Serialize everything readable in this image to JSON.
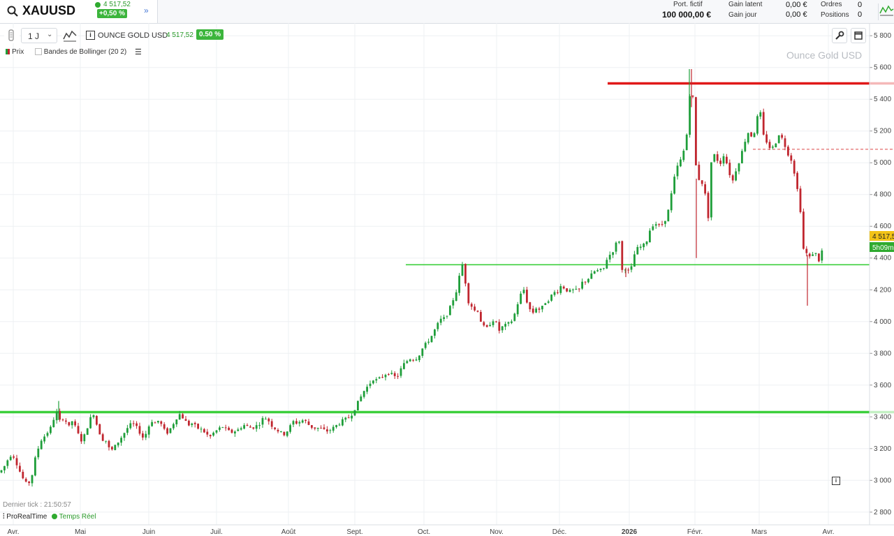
{
  "header": {
    "symbol": "XAUUSD",
    "price": "4 517,52",
    "change": "+0,50 %",
    "portfolio_label": "Port. fictif",
    "portfolio_value": "100 000,00 €",
    "gain_latent_label": "Gain latent",
    "gain_latent_value": "0,00 €",
    "gain_jour_label": "Gain jour",
    "gain_jour_value": "0,00 €",
    "orders_label": "Ordres",
    "orders_value": "0",
    "positions_label": "Positions",
    "positions_value": "0"
  },
  "toolbar": {
    "timeframe": "1 J",
    "instrument": "OUNCE GOLD USD",
    "price": "4 517,52",
    "change": "0.50 %"
  },
  "legend": {
    "prix": "Prix",
    "bollinger": "Bandes de Bollinger (20 2)"
  },
  "footer": {
    "last_tick": "Dernier tick : 21:50:57",
    "brand": "ProRealTime",
    "realtime": "Temps Réel"
  },
  "chart_data": {
    "type": "candlestick",
    "title": "Ounce Gold USD",
    "ylim": [
      2720,
      5880
    ],
    "y_ticks": [
      2800,
      3000,
      3200,
      3400,
      3600,
      3800,
      4000,
      4200,
      4400,
      4600,
      4800,
      5000,
      5200,
      5400,
      5600,
      5800
    ],
    "y_tick_labels": [
      "2 800",
      "3 000",
      "3 200",
      "3 400",
      "3 600",
      "3 800",
      "4 000",
      "4 200",
      "4 400",
      "4 600",
      "4 800",
      "5 000",
      "5 200",
      "5 400",
      "5 600",
      "5 800"
    ],
    "x_labels": [
      "Avr.",
      "Mai",
      "Juin",
      "Juil.",
      "Août",
      "Sept.",
      "Oct.",
      "Nov.",
      "Déc.",
      "2026",
      "Févr.",
      "Mars",
      "Avr."
    ],
    "last_price_tag": "4 517,5",
    "countdown_tag": "5h09m",
    "colors": {
      "up": "#1f9e3a",
      "down": "#c0262f",
      "support": "#3ccf3c",
      "resistance": "#e01818"
    },
    "horizontal_levels": [
      {
        "value": 3430,
        "color": "#3ccf3c",
        "style": "solid-thick",
        "from": "Avr."
      },
      {
        "value": 4358,
        "color": "#3ccf3c",
        "style": "solid",
        "from": "Sept."
      },
      {
        "value": 5500,
        "color": "#e01818",
        "style": "solid-thick",
        "from": "Déc."
      },
      {
        "value": 5085,
        "color": "#e36a6a",
        "style": "dashed",
        "from": "Mars"
      }
    ],
    "price_path": [
      [
        0,
        3050
      ],
      [
        8,
        3100
      ],
      [
        14,
        3160
      ],
      [
        20,
        3150
      ],
      [
        28,
        3060
      ],
      [
        36,
        2980
      ],
      [
        44,
        2990
      ],
      [
        50,
        3130
      ],
      [
        58,
        3250
      ],
      [
        66,
        3290
      ],
      [
        74,
        3340
      ],
      [
        80,
        3440
      ],
      [
        86,
        3370
      ],
      [
        92,
        3400
      ],
      [
        98,
        3330
      ],
      [
        104,
        3380
      ],
      [
        110,
        3310
      ],
      [
        116,
        3250
      ],
      [
        122,
        3290
      ],
      [
        128,
        3380
      ],
      [
        134,
        3420
      ],
      [
        140,
        3330
      ],
      [
        146,
        3260
      ],
      [
        152,
        3250
      ],
      [
        158,
        3180
      ],
      [
        164,
        3210
      ],
      [
        172,
        3260
      ],
      [
        178,
        3300
      ],
      [
        184,
        3340
      ],
      [
        190,
        3360
      ],
      [
        198,
        3320
      ],
      [
        204,
        3270
      ],
      [
        210,
        3300
      ],
      [
        216,
        3380
      ],
      [
        222,
        3360
      ],
      [
        228,
        3380
      ],
      [
        234,
        3320
      ],
      [
        240,
        3300
      ],
      [
        246,
        3340
      ],
      [
        252,
        3390
      ],
      [
        258,
        3420
      ],
      [
        264,
        3380
      ],
      [
        270,
        3350
      ],
      [
        276,
        3360
      ],
      [
        282,
        3330
      ],
      [
        288,
        3320
      ],
      [
        294,
        3300
      ],
      [
        300,
        3270
      ],
      [
        306,
        3300
      ],
      [
        312,
        3320
      ],
      [
        318,
        3340
      ],
      [
        324,
        3320
      ],
      [
        330,
        3300
      ],
      [
        336,
        3310
      ],
      [
        342,
        3320
      ],
      [
        348,
        3350
      ],
      [
        354,
        3340
      ],
      [
        360,
        3330
      ],
      [
        366,
        3340
      ],
      [
        372,
        3360
      ],
      [
        378,
        3400
      ],
      [
        384,
        3380
      ],
      [
        390,
        3340
      ],
      [
        396,
        3320
      ],
      [
        402,
        3300
      ],
      [
        408,
        3290
      ],
      [
        414,
        3330
      ],
      [
        420,
        3370
      ],
      [
        426,
        3360
      ],
      [
        432,
        3380
      ],
      [
        438,
        3370
      ],
      [
        444,
        3340
      ],
      [
        450,
        3330
      ],
      [
        456,
        3330
      ],
      [
        462,
        3320
      ],
      [
        468,
        3310
      ],
      [
        474,
        3320
      ],
      [
        480,
        3340
      ],
      [
        486,
        3360
      ],
      [
        492,
        3380
      ],
      [
        498,
        3390
      ],
      [
        504,
        3420
      ],
      [
        510,
        3470
      ],
      [
        516,
        3520
      ],
      [
        522,
        3570
      ],
      [
        528,
        3600
      ],
      [
        534,
        3640
      ],
      [
        540,
        3630
      ],
      [
        546,
        3650
      ],
      [
        552,
        3670
      ],
      [
        558,
        3680
      ],
      [
        564,
        3650
      ],
      [
        570,
        3660
      ],
      [
        576,
        3720
      ],
      [
        582,
        3750
      ],
      [
        588,
        3770
      ],
      [
        594,
        3760
      ],
      [
        600,
        3790
      ],
      [
        606,
        3840
      ],
      [
        612,
        3870
      ],
      [
        618,
        3910
      ],
      [
        624,
        3960
      ],
      [
        630,
        4010
      ],
      [
        636,
        4020
      ],
      [
        642,
        4060
      ],
      [
        648,
        4130
      ],
      [
        654,
        4200
      ],
      [
        658,
        4290
      ],
      [
        662,
        4360
      ],
      [
        666,
        4260
      ],
      [
        670,
        4130
      ],
      [
        674,
        4110
      ],
      [
        678,
        4070
      ],
      [
        684,
        4070
      ],
      [
        690,
        3980
      ],
      [
        696,
        3950
      ],
      [
        702,
        3990
      ],
      [
        708,
        4020
      ],
      [
        714,
        3940
      ],
      [
        720,
        3970
      ],
      [
        726,
        3980
      ],
      [
        732,
        4000
      ],
      [
        738,
        4060
      ],
      [
        744,
        4160
      ],
      [
        750,
        4200
      ],
      [
        756,
        4100
      ],
      [
        762,
        4050
      ],
      [
        768,
        4090
      ],
      [
        774,
        4070
      ],
      [
        780,
        4120
      ],
      [
        786,
        4140
      ],
      [
        792,
        4180
      ],
      [
        798,
        4190
      ],
      [
        804,
        4230
      ],
      [
        810,
        4200
      ],
      [
        816,
        4190
      ],
      [
        822,
        4200
      ],
      [
        828,
        4190
      ],
      [
        834,
        4250
      ],
      [
        840,
        4260
      ],
      [
        846,
        4290
      ],
      [
        852,
        4320
      ],
      [
        858,
        4320
      ],
      [
        864,
        4330
      ],
      [
        870,
        4410
      ],
      [
        876,
        4430
      ],
      [
        882,
        4490
      ],
      [
        886,
        4530
      ],
      [
        890,
        4320
      ],
      [
        896,
        4340
      ],
      [
        902,
        4300
      ],
      [
        908,
        4420
      ],
      [
        914,
        4470
      ],
      [
        920,
        4470
      ],
      [
        926,
        4510
      ],
      [
        932,
        4600
      ],
      [
        938,
        4620
      ],
      [
        944,
        4600
      ],
      [
        950,
        4620
      ],
      [
        956,
        4680
      ],
      [
        962,
        4820
      ],
      [
        968,
        4960
      ],
      [
        974,
        5010
      ],
      [
        980,
        5090
      ],
      [
        984,
        5200
      ],
      [
        987,
        5420
      ],
      [
        990,
        5470
      ],
      [
        994,
        5350
      ],
      [
        997,
        4890
      ],
      [
        1002,
        4900
      ],
      [
        1008,
        4850
      ],
      [
        1014,
        4660
      ],
      [
        1018,
        5000
      ],
      [
        1024,
        5060
      ],
      [
        1030,
        4980
      ],
      [
        1036,
        5050
      ],
      [
        1042,
        4980
      ],
      [
        1048,
        4870
      ],
      [
        1054,
        4960
      ],
      [
        1060,
        5030
      ],
      [
        1066,
        5130
      ],
      [
        1072,
        5200
      ],
      [
        1078,
        5150
      ],
      [
        1084,
        5280
      ],
      [
        1088,
        5340
      ],
      [
        1092,
        5180
      ],
      [
        1098,
        5130
      ],
      [
        1104,
        5080
      ],
      [
        1110,
        5120
      ],
      [
        1116,
        5190
      ],
      [
        1122,
        5130
      ],
      [
        1128,
        5060
      ],
      [
        1134,
        5010
      ],
      [
        1140,
        4880
      ],
      [
        1146,
        4700
      ],
      [
        1150,
        4460
      ],
      [
        1156,
        4420
      ],
      [
        1160,
        4400
      ],
      [
        1166,
        4450
      ],
      [
        1172,
        4380
      ],
      [
        1178,
        4460
      ],
      [
        1184,
        4517
      ]
    ]
  }
}
